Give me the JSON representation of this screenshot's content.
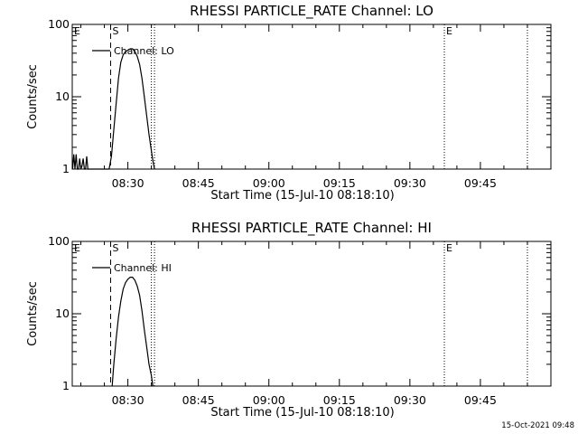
{
  "colors": {
    "background": "#ffffff",
    "ink": "#000000"
  },
  "footer_timestamp": "15-Oct-2021 09:48",
  "chart_data": [
    {
      "type": "line",
      "title": "RHESSI PARTICLE_RATE Channel: LO",
      "xlabel": "Start Time (15-Jul-10 08:18:10)",
      "ylabel": "Counts/sec",
      "yscale": "log",
      "ylim": [
        1,
        100
      ],
      "yticks": [
        "1",
        "10",
        "100"
      ],
      "xlim": [
        "08:18:10",
        "10:00:00"
      ],
      "xticks": [
        "08:30",
        "08:45",
        "09:00",
        "09:15",
        "09:30",
        "09:45"
      ],
      "grid": false,
      "legend": {
        "placement": "top-left",
        "label": "Channel: LO"
      },
      "series": [
        {
          "name": "Channel: LO",
          "x": [
            "08:18:15",
            "08:18:30",
            "08:18:45",
            "08:19:00",
            "08:19:15",
            "08:19:30",
            "08:19:45",
            "08:20:00",
            "08:20:15",
            "08:20:30",
            "08:20:45",
            "08:21:00",
            "08:21:15",
            "08:21:30",
            "08:26:00",
            "08:26:30",
            "08:27:00",
            "08:27:30",
            "08:28:00",
            "08:28:30",
            "08:29:00",
            "08:29:30",
            "08:30:00",
            "08:30:30",
            "08:31:00",
            "08:31:30",
            "08:32:00",
            "08:32:30",
            "08:33:00",
            "08:33:30",
            "08:34:00",
            "08:34:30",
            "08:35:00",
            "08:35:20",
            "08:35:40"
          ],
          "y": [
            1,
            1.6,
            1,
            1.6,
            1,
            1,
            1.4,
            1,
            1.1,
            1.4,
            1,
            1,
            1.5,
            1,
            1,
            1.5,
            3.5,
            8,
            18,
            30,
            38,
            42,
            44,
            46,
            46,
            42,
            36,
            28,
            18,
            10,
            5.5,
            3,
            1.8,
            1.3,
            1
          ]
        }
      ],
      "annotations": [
        {
          "label": "E",
          "time": "08:18:10"
        },
        {
          "label": "S",
          "time": "08:26:20"
        },
        {
          "label": "",
          "time": "08:35:00"
        },
        {
          "label": "",
          "time": "08:35:40"
        },
        {
          "label": "E",
          "time": "09:37:20"
        },
        {
          "label": "",
          "time": "09:55:00"
        }
      ]
    },
    {
      "type": "line",
      "title": "RHESSI PARTICLE_RATE Channel: HI",
      "xlabel": "Start Time (15-Jul-10 08:18:10)",
      "ylabel": "Counts/sec",
      "yscale": "log",
      "ylim": [
        1,
        100
      ],
      "yticks": [
        "1",
        "10",
        "100"
      ],
      "xlim": [
        "08:18:10",
        "10:00:00"
      ],
      "xticks": [
        "08:30",
        "08:45",
        "09:00",
        "09:15",
        "09:30",
        "09:45"
      ],
      "grid": false,
      "legend": {
        "placement": "top-left",
        "label": "Channel: HI"
      },
      "series": [
        {
          "name": "Channel: HI",
          "x": [
            "08:26:40",
            "08:27:00",
            "08:27:30",
            "08:28:00",
            "08:28:30",
            "08:29:00",
            "08:29:30",
            "08:30:00",
            "08:30:30",
            "08:31:00",
            "08:31:30",
            "08:32:00",
            "08:32:30",
            "08:33:00",
            "08:33:30",
            "08:34:00",
            "08:34:30",
            "08:35:00",
            "08:35:20"
          ],
          "y": [
            1,
            2,
            4.5,
            9,
            15,
            22,
            27,
            30,
            32,
            32,
            29,
            24,
            18,
            11,
            6,
            3.5,
            2,
            1.4,
            1
          ]
        }
      ],
      "annotations": [
        {
          "label": "E",
          "time": "08:18:10"
        },
        {
          "label": "S",
          "time": "08:26:20"
        },
        {
          "label": "",
          "time": "08:35:00"
        },
        {
          "label": "",
          "time": "08:35:40"
        },
        {
          "label": "E",
          "time": "09:37:20"
        },
        {
          "label": "",
          "time": "09:55:00"
        }
      ]
    }
  ]
}
